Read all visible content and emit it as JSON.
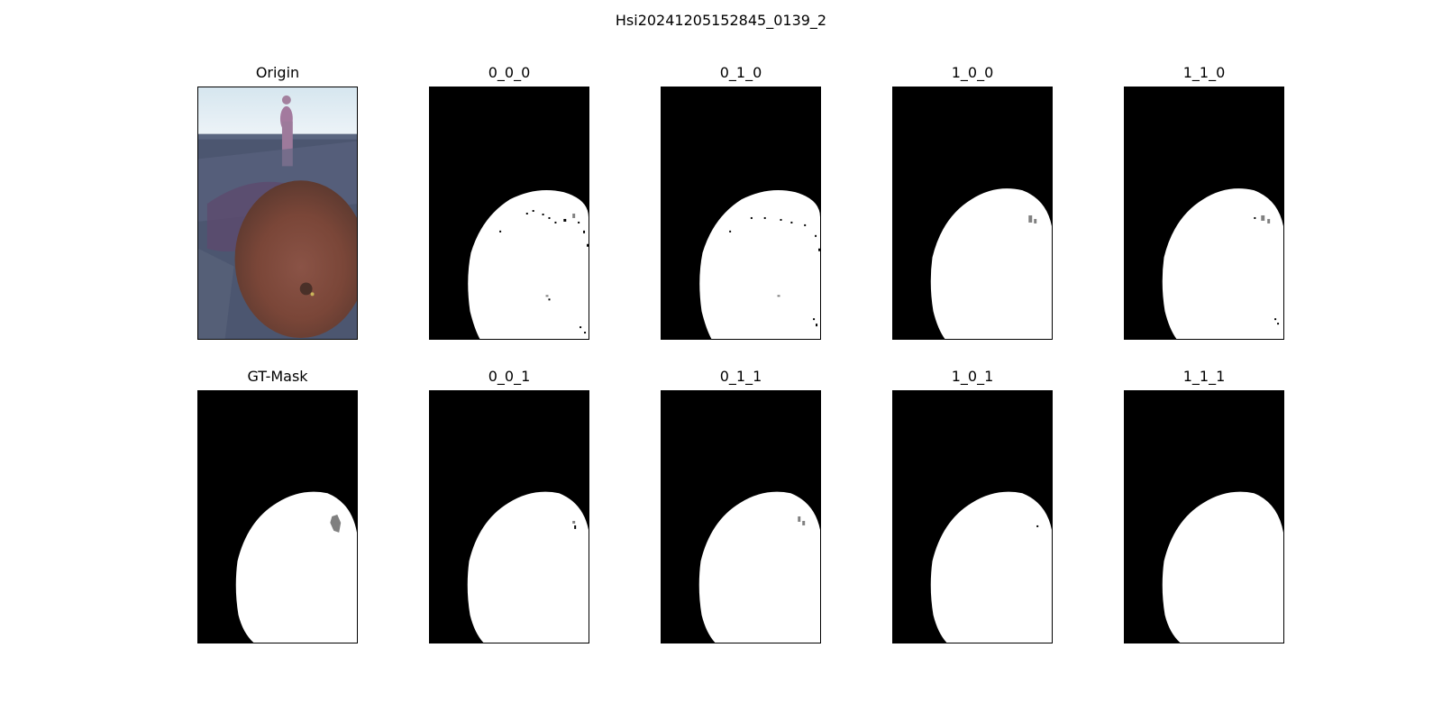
{
  "figure": {
    "title": "Hsi20241205152845_0139_2"
  },
  "panels": {
    "origin": {
      "title": "Origin"
    },
    "gt_mask": {
      "title": "GT-Mask"
    },
    "p000": {
      "title": "0_0_0"
    },
    "p010": {
      "title": "0_1_0"
    },
    "p100": {
      "title": "1_0_0"
    },
    "p110": {
      "title": "1_1_0"
    },
    "p001": {
      "title": "0_0_1"
    },
    "p011": {
      "title": "0_1_1"
    },
    "p101": {
      "title": "1_0_1"
    },
    "p111": {
      "title": "1_1_1"
    }
  },
  "colors": {
    "background": "#000000",
    "foreground": "#ffffff",
    "uncertain": "#808080"
  }
}
